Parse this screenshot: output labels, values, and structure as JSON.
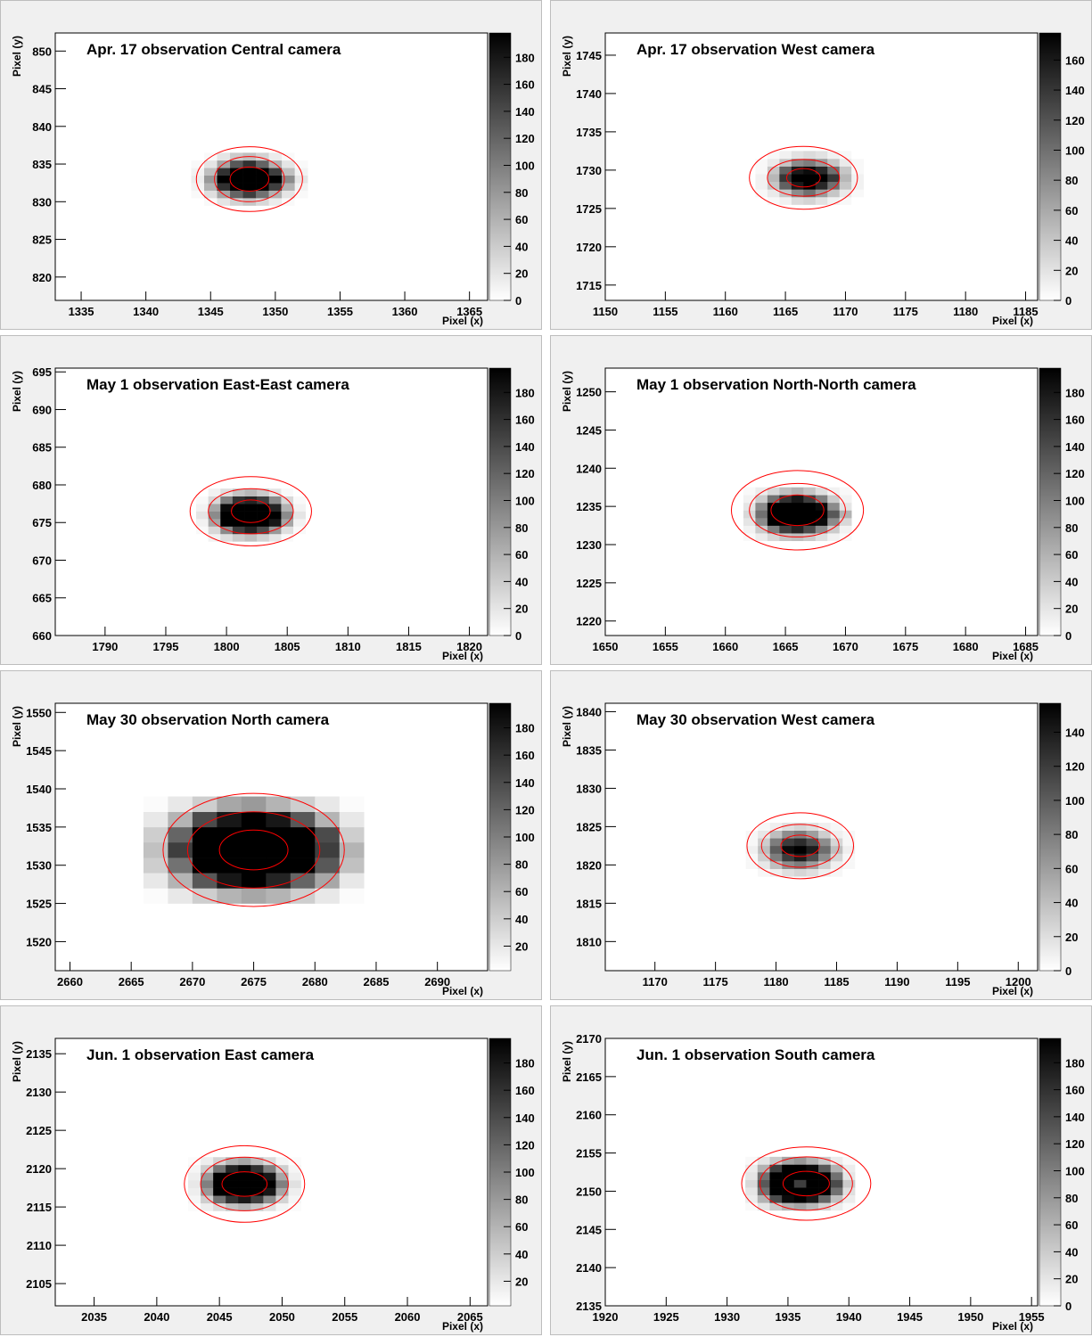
{
  "chart_data": [
    {
      "type": "heatmap",
      "title": "Apr. 17 observation Central camera",
      "xlabel": "Pixel (x)",
      "ylabel": "Pixel (y)",
      "x": [
        1344,
        1345,
        1346,
        1347,
        1348,
        1349,
        1350,
        1351,
        1352
      ],
      "y": [
        830,
        831,
        832,
        833,
        834,
        835,
        836
      ],
      "z": [
        [
          0,
          5,
          20,
          35,
          45,
          30,
          15,
          5,
          0
        ],
        [
          5,
          25,
          70,
          120,
          150,
          110,
          60,
          20,
          5
        ],
        [
          10,
          60,
          160,
          198,
          198,
          198,
          150,
          60,
          10
        ],
        [
          15,
          80,
          198,
          198,
          198,
          198,
          198,
          90,
          20
        ],
        [
          10,
          50,
          160,
          198,
          198,
          198,
          150,
          50,
          10
        ],
        [
          5,
          20,
          70,
          130,
          160,
          120,
          60,
          20,
          5
        ],
        [
          0,
          5,
          20,
          40,
          50,
          35,
          15,
          5,
          0
        ]
      ],
      "contours": [
        {
          "cx": 1348,
          "cy": 833,
          "rx": 4.1,
          "ry": 4.3
        },
        {
          "cx": 1348,
          "cy": 833,
          "rx": 2.7,
          "ry": 3
        },
        {
          "cx": 1348,
          "cy": 833,
          "rx": 1.5,
          "ry": 1.6
        }
      ],
      "contour_color": "#ff0000",
      "xlim": [
        1333,
        1366.4
      ],
      "xticks": [
        1335,
        1340,
        1345,
        1350,
        1355,
        1360,
        1365
      ],
      "ylim": [
        816.9,
        852.4
      ],
      "yticks": [
        820,
        825,
        830,
        835,
        840,
        845,
        850
      ],
      "zlim": [
        0,
        198
      ],
      "zticks": [
        0,
        20,
        40,
        60,
        80,
        100,
        120,
        140,
        160,
        180
      ]
    },
    {
      "type": "heatmap",
      "title": "Apr. 17 observation West camera",
      "xlabel": "Pixel (x)",
      "ylabel": "Pixel (y)",
      "x": [
        1163,
        1164,
        1165,
        1166,
        1167,
        1168,
        1169,
        1170,
        1171
      ],
      "y": [
        1726,
        1727,
        1728,
        1729,
        1730,
        1731,
        1732
      ],
      "z": [
        [
          0,
          5,
          10,
          25,
          30,
          20,
          10,
          5,
          0
        ],
        [
          5,
          15,
          40,
          80,
          100,
          70,
          40,
          15,
          5
        ],
        [
          10,
          40,
          110,
          160,
          178,
          150,
          100,
          40,
          10
        ],
        [
          10,
          50,
          140,
          178,
          178,
          178,
          140,
          50,
          10
        ],
        [
          5,
          40,
          110,
          160,
          170,
          150,
          100,
          40,
          5
        ],
        [
          5,
          15,
          40,
          80,
          90,
          70,
          40,
          15,
          5
        ],
        [
          0,
          5,
          10,
          20,
          25,
          20,
          10,
          5,
          0
        ]
      ],
      "contours": [
        {
          "cx": 1166.5,
          "cy": 1729,
          "rx": 4.5,
          "ry": 4.1
        },
        {
          "cx": 1166.5,
          "cy": 1729,
          "rx": 3,
          "ry": 2.4
        },
        {
          "cx": 1166.5,
          "cy": 1729,
          "rx": 1.4,
          "ry": 1.2
        }
      ],
      "contour_color": "#ff0000",
      "xlim": [
        1150,
        1186
      ],
      "xticks": [
        1150,
        1155,
        1160,
        1165,
        1170,
        1175,
        1180,
        1185
      ],
      "ylim": [
        1713,
        1747.9
      ],
      "yticks": [
        1715,
        1720,
        1725,
        1730,
        1735,
        1740,
        1745
      ],
      "zlim": [
        0,
        178
      ],
      "zticks": [
        0,
        20,
        40,
        60,
        80,
        100,
        120,
        140,
        160
      ]
    },
    {
      "type": "heatmap",
      "title": "May 1 observation East-East camera",
      "xlabel": "Pixel (x)",
      "ylabel": "Pixel (y)",
      "x": [
        1798,
        1799,
        1800,
        1801,
        1802,
        1803,
        1804,
        1805,
        1806
      ],
      "y": [
        673,
        674,
        675,
        676,
        677,
        678,
        679
      ],
      "z": [
        [
          0,
          10,
          25,
          40,
          50,
          35,
          20,
          5,
          0
        ],
        [
          5,
          30,
          90,
          150,
          170,
          140,
          80,
          25,
          5
        ],
        [
          10,
          70,
          198,
          198,
          198,
          198,
          180,
          70,
          10
        ],
        [
          20,
          90,
          198,
          198,
          198,
          198,
          198,
          90,
          20
        ],
        [
          10,
          70,
          190,
          198,
          198,
          198,
          170,
          60,
          10
        ],
        [
          5,
          30,
          100,
          160,
          170,
          150,
          90,
          30,
          5
        ],
        [
          0,
          10,
          25,
          45,
          55,
          40,
          20,
          5,
          0
        ]
      ],
      "contours": [
        {
          "cx": 1802,
          "cy": 676.5,
          "rx": 5,
          "ry": 4.6
        },
        {
          "cx": 1802,
          "cy": 676.5,
          "rx": 3.5,
          "ry": 3
        },
        {
          "cx": 1802,
          "cy": 676.5,
          "rx": 1.6,
          "ry": 1.5
        }
      ],
      "contour_color": "#ff0000",
      "xlim": [
        1785.9,
        1821.5
      ],
      "xticks": [
        1790,
        1795,
        1800,
        1805,
        1810,
        1815,
        1820
      ],
      "ylim": [
        660,
        695.5
      ],
      "yticks": [
        660,
        665,
        670,
        675,
        680,
        685,
        690,
        695
      ],
      "zlim": [
        0,
        198
      ],
      "zticks": [
        0,
        20,
        40,
        60,
        80,
        100,
        120,
        140,
        160,
        180
      ]
    },
    {
      "type": "heatmap",
      "title": "May 1 observation North-North camera",
      "xlabel": "Pixel (x)",
      "ylabel": "Pixel (y)",
      "x": [
        1662,
        1663,
        1664,
        1665,
        1666,
        1667,
        1668,
        1669,
        1670
      ],
      "y": [
        1231,
        1232,
        1233,
        1234,
        1235,
        1236,
        1237
      ],
      "z": [
        [
          5,
          15,
          30,
          45,
          50,
          40,
          25,
          10,
          5
        ],
        [
          10,
          40,
          100,
          150,
          170,
          140,
          90,
          40,
          10
        ],
        [
          20,
          90,
          198,
          198,
          198,
          198,
          190,
          90,
          30
        ],
        [
          30,
          110,
          198,
          198,
          198,
          198,
          198,
          130,
          60
        ],
        [
          20,
          90,
          198,
          198,
          198,
          198,
          190,
          90,
          20
        ],
        [
          10,
          40,
          110,
          160,
          180,
          150,
          100,
          40,
          10
        ],
        [
          5,
          15,
          30,
          50,
          60,
          45,
          25,
          10,
          5
        ]
      ],
      "contours": [
        {
          "cx": 1666,
          "cy": 1234.5,
          "rx": 5.5,
          "ry": 5.2
        },
        {
          "cx": 1666,
          "cy": 1234.5,
          "rx": 4,
          "ry": 3.5
        },
        {
          "cx": 1666,
          "cy": 1234.5,
          "rx": 2.2,
          "ry": 2
        }
      ],
      "contour_color": "#ff0000",
      "xlim": [
        1650,
        1686
      ],
      "xticks": [
        1650,
        1655,
        1660,
        1665,
        1670,
        1675,
        1680,
        1685
      ],
      "ylim": [
        1218.1,
        1253.1
      ],
      "yticks": [
        1220,
        1225,
        1230,
        1235,
        1240,
        1245,
        1250
      ],
      "zlim": [
        0,
        198
      ],
      "zticks": [
        0,
        20,
        40,
        60,
        80,
        100,
        120,
        140,
        160,
        180
      ]
    },
    {
      "type": "heatmap",
      "title": "May 30 observation North camera",
      "xlabel": "Pixel (x)",
      "ylabel": "Pixel (y)",
      "x": [
        2667,
        2669,
        2671,
        2673,
        2675,
        2677,
        2679,
        2681,
        2683
      ],
      "y": [
        1526,
        1528,
        1530,
        1532,
        1534,
        1536,
        1538
      ],
      "z": [
        [
          5,
          20,
          40,
          60,
          70,
          60,
          40,
          20,
          5
        ],
        [
          20,
          60,
          130,
          180,
          198,
          170,
          120,
          70,
          20
        ],
        [
          40,
          110,
          198,
          198,
          198,
          198,
          198,
          130,
          50
        ],
        [
          50,
          150,
          198,
          198,
          198,
          198,
          198,
          150,
          60
        ],
        [
          40,
          120,
          198,
          198,
          198,
          198,
          198,
          140,
          40
        ],
        [
          20,
          60,
          140,
          180,
          198,
          180,
          130,
          60,
          20
        ],
        [
          5,
          20,
          40,
          70,
          80,
          60,
          40,
          20,
          5
        ]
      ],
      "contours": [
        {
          "cx": 2675,
          "cy": 1532,
          "rx": 7.4,
          "ry": 7.4
        },
        {
          "cx": 2675,
          "cy": 1532,
          "rx": 5.4,
          "ry": 5
        },
        {
          "cx": 2675,
          "cy": 1532,
          "rx": 2.8,
          "ry": 2.6
        }
      ],
      "contour_color": "#ff0000",
      "xlim": [
        2658.8,
        2694.1
      ],
      "xticks": [
        2660,
        2665,
        2670,
        2675,
        2680,
        2685,
        2690
      ],
      "ylim": [
        1516.2,
        1551.2
      ],
      "yticks": [
        1520,
        1525,
        1530,
        1535,
        1540,
        1545,
        1550
      ],
      "zlim": [
        2,
        198
      ],
      "zticks": [
        20,
        40,
        60,
        80,
        100,
        120,
        140,
        160,
        180
      ]
    },
    {
      "type": "heatmap",
      "title": "May 30 observation West camera",
      "xlabel": "Pixel (x)",
      "ylabel": "Pixel (y)",
      "x": [
        1178,
        1179,
        1180,
        1181,
        1182,
        1183,
        1184,
        1185,
        1186
      ],
      "y": [
        1819,
        1820,
        1821,
        1822,
        1823,
        1824,
        1825
      ],
      "z": [
        [
          0,
          5,
          10,
          20,
          25,
          20,
          10,
          5,
          0
        ],
        [
          5,
          15,
          40,
          70,
          80,
          60,
          30,
          10,
          5
        ],
        [
          5,
          30,
          80,
          120,
          140,
          110,
          70,
          25,
          5
        ],
        [
          10,
          40,
          100,
          150,
          157,
          140,
          90,
          40,
          10
        ],
        [
          5,
          30,
          80,
          120,
          130,
          110,
          70,
          25,
          5
        ],
        [
          5,
          15,
          40,
          70,
          80,
          60,
          30,
          10,
          5
        ],
        [
          0,
          5,
          10,
          20,
          25,
          20,
          10,
          5,
          0
        ]
      ],
      "contours": [
        {
          "cx": 1182,
          "cy": 1822.5,
          "rx": 4.4,
          "ry": 4.3
        },
        {
          "cx": 1182,
          "cy": 1822.5,
          "rx": 3.2,
          "ry": 2.8
        },
        {
          "cx": 1182,
          "cy": 1822.5,
          "rx": 1.6,
          "ry": 1.4
        }
      ],
      "contour_color": "#ff0000",
      "xlim": [
        1165.9,
        1201.6
      ],
      "xticks": [
        1170,
        1175,
        1180,
        1185,
        1190,
        1195,
        1200
      ],
      "ylim": [
        1806.2,
        1841.1
      ],
      "yticks": [
        1810,
        1815,
        1820,
        1825,
        1830,
        1835,
        1840
      ],
      "zlim": [
        0,
        157
      ],
      "zticks": [
        0,
        20,
        40,
        60,
        80,
        100,
        120,
        140
      ]
    },
    {
      "type": "heatmap",
      "title": "Jun. 1 observation East camera",
      "xlabel": "Pixel (x)",
      "ylabel": "Pixel (y)",
      "x": [
        2043,
        2044,
        2045,
        2046,
        2047,
        2048,
        2049,
        2050,
        2051
      ],
      "y": [
        2115,
        2116,
        2117,
        2118,
        2119,
        2120,
        2121
      ],
      "z": [
        [
          5,
          15,
          30,
          50,
          60,
          45,
          25,
          10,
          5
        ],
        [
          10,
          40,
          110,
          160,
          180,
          150,
          90,
          35,
          10
        ],
        [
          15,
          80,
          198,
          198,
          198,
          198,
          180,
          70,
          15
        ],
        [
          20,
          100,
          198,
          198,
          198,
          198,
          198,
          100,
          25
        ],
        [
          15,
          80,
          198,
          198,
          198,
          198,
          180,
          70,
          15
        ],
        [
          10,
          40,
          110,
          170,
          190,
          160,
          100,
          40,
          10
        ],
        [
          5,
          15,
          35,
          60,
          70,
          50,
          30,
          10,
          5
        ]
      ],
      "contours": [
        {
          "cx": 2047,
          "cy": 2118,
          "rx": 4.8,
          "ry": 5
        },
        {
          "cx": 2047,
          "cy": 2118,
          "rx": 3.5,
          "ry": 3.5
        },
        {
          "cx": 2047,
          "cy": 2118,
          "rx": 1.8,
          "ry": 1.6
        }
      ],
      "contour_color": "#ff0000",
      "xlim": [
        2031.9,
        2066.4
      ],
      "xticks": [
        2035,
        2040,
        2045,
        2050,
        2055,
        2060,
        2065
      ],
      "ylim": [
        2102.1,
        2137
      ],
      "yticks": [
        2105,
        2110,
        2115,
        2120,
        2125,
        2130,
        2135
      ],
      "zlim": [
        2,
        198
      ],
      "zticks": [
        20,
        40,
        60,
        80,
        100,
        120,
        140,
        160,
        180
      ]
    },
    {
      "type": "heatmap",
      "title": "Jun. 1 observation South camera",
      "xlabel": "Pixel (x)",
      "ylabel": "Pixel (y)",
      "x": [
        1932,
        1933,
        1934,
        1935,
        1936,
        1937,
        1938,
        1939,
        1940
      ],
      "y": [
        2148,
        2149,
        2150,
        2151,
        2152,
        2153,
        2154
      ],
      "z": [
        [
          5,
          20,
          40,
          60,
          70,
          55,
          35,
          15,
          5
        ],
        [
          15,
          60,
          140,
          190,
          198,
          180,
          120,
          50,
          15
        ],
        [
          20,
          110,
          198,
          198,
          198,
          198,
          198,
          110,
          25
        ],
        [
          30,
          130,
          198,
          198,
          150,
          198,
          198,
          140,
          40
        ],
        [
          20,
          110,
          198,
          198,
          198,
          198,
          198,
          110,
          20
        ],
        [
          15,
          60,
          150,
          198,
          198,
          190,
          130,
          60,
          15
        ],
        [
          5,
          20,
          40,
          70,
          80,
          60,
          40,
          15,
          5
        ]
      ],
      "contours": [
        {
          "cx": 1936.5,
          "cy": 2151,
          "rx": 5.3,
          "ry": 4.8
        },
        {
          "cx": 1936.5,
          "cy": 2151,
          "rx": 3.8,
          "ry": 3.5
        },
        {
          "cx": 1936.5,
          "cy": 2151,
          "rx": 1.9,
          "ry": 1.6
        }
      ],
      "contour_color": "#ff0000",
      "xlim": [
        1920,
        1955.5
      ],
      "xticks": [
        1920,
        1925,
        1930,
        1935,
        1940,
        1945,
        1950,
        1955
      ],
      "ylim": [
        2135,
        2170
      ],
      "yticks": [
        2135,
        2140,
        2145,
        2150,
        2155,
        2160,
        2165,
        2170
      ],
      "zlim": [
        0,
        198
      ],
      "zticks": [
        0,
        20,
        40,
        60,
        80,
        100,
        120,
        140,
        160,
        180
      ]
    }
  ]
}
